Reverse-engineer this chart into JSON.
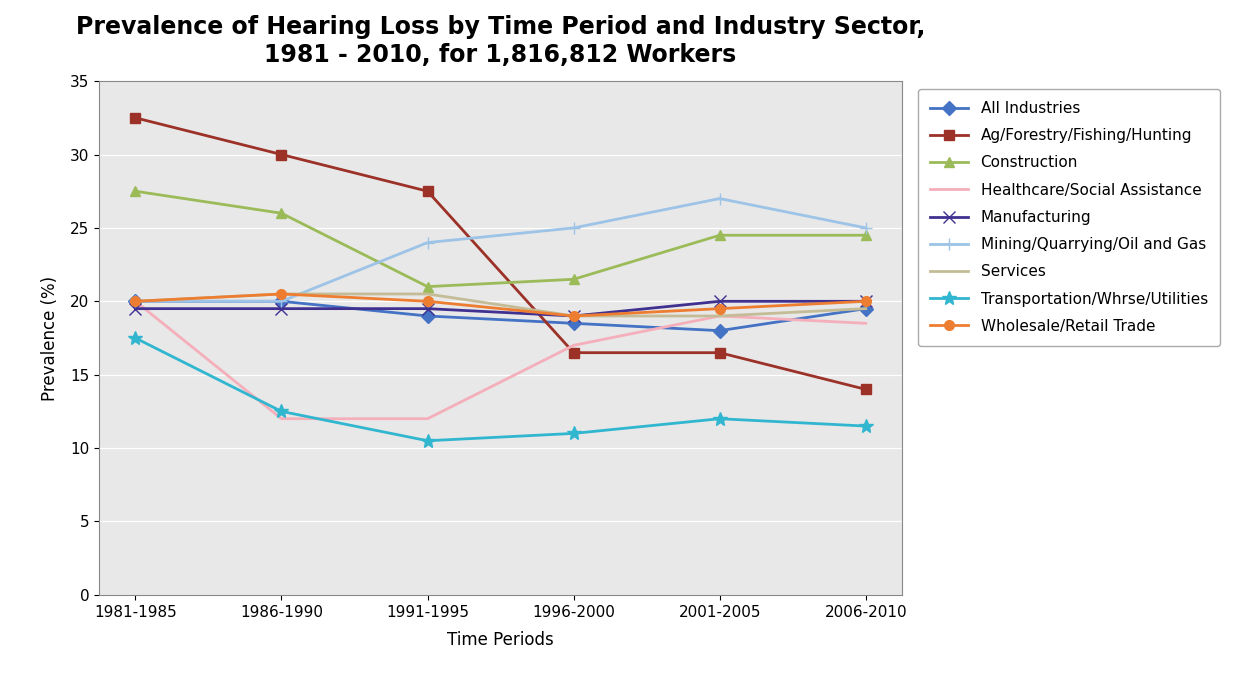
{
  "title": "Prevalence of Hearing Loss by Time Period and Industry Sector,\n1981 - 2010, for 1,816,812 Workers",
  "xlabel": "Time Periods",
  "ylabel": "Prevalence (%)",
  "time_periods": [
    "1981-1985",
    "1986-1990",
    "1991-1995",
    "1996-2000",
    "2001-2005",
    "2006-2010"
  ],
  "series": [
    {
      "name": "All Industries",
      "values": [
        20.0,
        20.0,
        19.0,
        18.5,
        18.0,
        19.5
      ],
      "color": "#4472C4",
      "marker": "D",
      "markersize": 7,
      "linewidth": 2
    },
    {
      "name": "Ag/Forestry/Fishing/Hunting",
      "values": [
        32.5,
        30.0,
        27.5,
        16.5,
        16.5,
        14.0
      ],
      "color": "#9C3128",
      "marker": "s",
      "markersize": 7,
      "linewidth": 2
    },
    {
      "name": "Construction",
      "values": [
        27.5,
        26.0,
        21.0,
        21.5,
        24.5,
        24.5
      ],
      "color": "#9BBB59",
      "marker": "^",
      "markersize": 7,
      "linewidth": 2
    },
    {
      "name": "Healthcare/Social Assistance",
      "values": [
        20.0,
        12.0,
        12.0,
        17.0,
        19.0,
        18.5
      ],
      "color": "#F4AFBA",
      "marker": "none",
      "markersize": 0,
      "linewidth": 2
    },
    {
      "name": "Manufacturing",
      "values": [
        19.5,
        19.5,
        19.5,
        19.0,
        20.0,
        20.0
      ],
      "color": "#403090",
      "marker": "x",
      "markersize": 8,
      "linewidth": 2
    },
    {
      "name": "Mining/Quarrying/Oil and Gas",
      "values": [
        20.0,
        20.0,
        24.0,
        25.0,
        27.0,
        25.0
      ],
      "color": "#9DC3E6",
      "marker": "+",
      "markersize": 8,
      "linewidth": 2
    },
    {
      "name": "Services",
      "values": [
        20.0,
        20.5,
        20.5,
        19.0,
        19.0,
        19.5
      ],
      "color": "#C4BC96",
      "marker": "none",
      "markersize": 0,
      "linewidth": 2
    },
    {
      "name": "Transportation/Whrse/Utilities",
      "values": [
        17.5,
        12.5,
        10.5,
        11.0,
        12.0,
        11.5
      ],
      "color": "#31B6D0",
      "marker": "*",
      "markersize": 10,
      "linewidth": 2
    },
    {
      "name": "Wholesale/Retail Trade",
      "values": [
        20.0,
        20.5,
        20.0,
        19.0,
        19.5,
        20.0
      ],
      "color": "#ED7D31",
      "marker": "o",
      "markersize": 7,
      "linewidth": 2
    }
  ],
  "ylim": [
    0,
    35
  ],
  "yticks": [
    0,
    5,
    10,
    15,
    20,
    25,
    30,
    35
  ],
  "background_color": "#FFFFFF",
  "plot_area_color": "#E8E8E8",
  "grid_color": "#FFFFFF",
  "title_fontsize": 17,
  "axis_label_fontsize": 12,
  "tick_fontsize": 11,
  "legend_fontsize": 11
}
